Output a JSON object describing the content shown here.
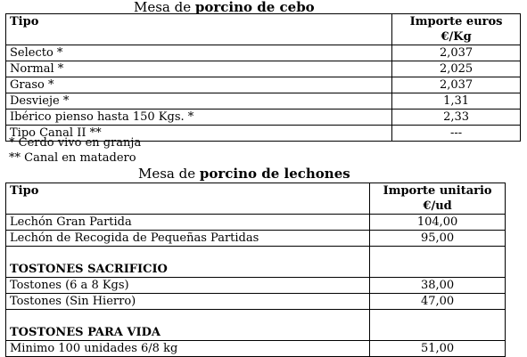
{
  "cebo": {
    "title_prefix": "Mesa de ",
    "title_bold": "porcino de cebo",
    "col_tipo": "Tipo",
    "col_importe_l1": "Importe euros",
    "col_importe_l2": "€/Kg",
    "rows": [
      {
        "tipo": "Selecto *",
        "importe": "2,037"
      },
      {
        "tipo": "Normal *",
        "importe": "2,025"
      },
      {
        "tipo": "Graso *",
        "importe": "2,037"
      },
      {
        "tipo": "Desvieje *",
        "importe": "1,31"
      },
      {
        "tipo": "Ibérico pienso hasta 150 Kgs. *",
        "importe": "2,33"
      },
      {
        "tipo": "Tipo Canal II **",
        "importe": "---"
      }
    ],
    "notes": [
      "* Cerdo vivo en granja",
      "** Canal en matadero"
    ]
  },
  "lechones": {
    "title_prefix": "Mesa de ",
    "title_bold": "porcino de lechones",
    "col_tipo": "Tipo",
    "col_importe_l1": "Importe unitario",
    "col_importe_l2": "€/ud",
    "rows": [
      {
        "tipo": "Lechón Gran Partida",
        "importe": "104,00"
      },
      {
        "tipo": "Lechón de Recogida de Pequeñas Partidas",
        "importe": "95,00"
      },
      {
        "section": "TOSTONES SACRIFICIO"
      },
      {
        "tipo": "Tostones (6 a 8 Kgs)",
        "importe": "38,00"
      },
      {
        "tipo": "Tostones  (Sin Hierro)",
        "importe": "47,00"
      },
      {
        "section": "TOSTONES PARA VIDA"
      },
      {
        "tipo": "Minimo 100 unidades 6/8 kg",
        "importe": "51,00"
      }
    ]
  }
}
